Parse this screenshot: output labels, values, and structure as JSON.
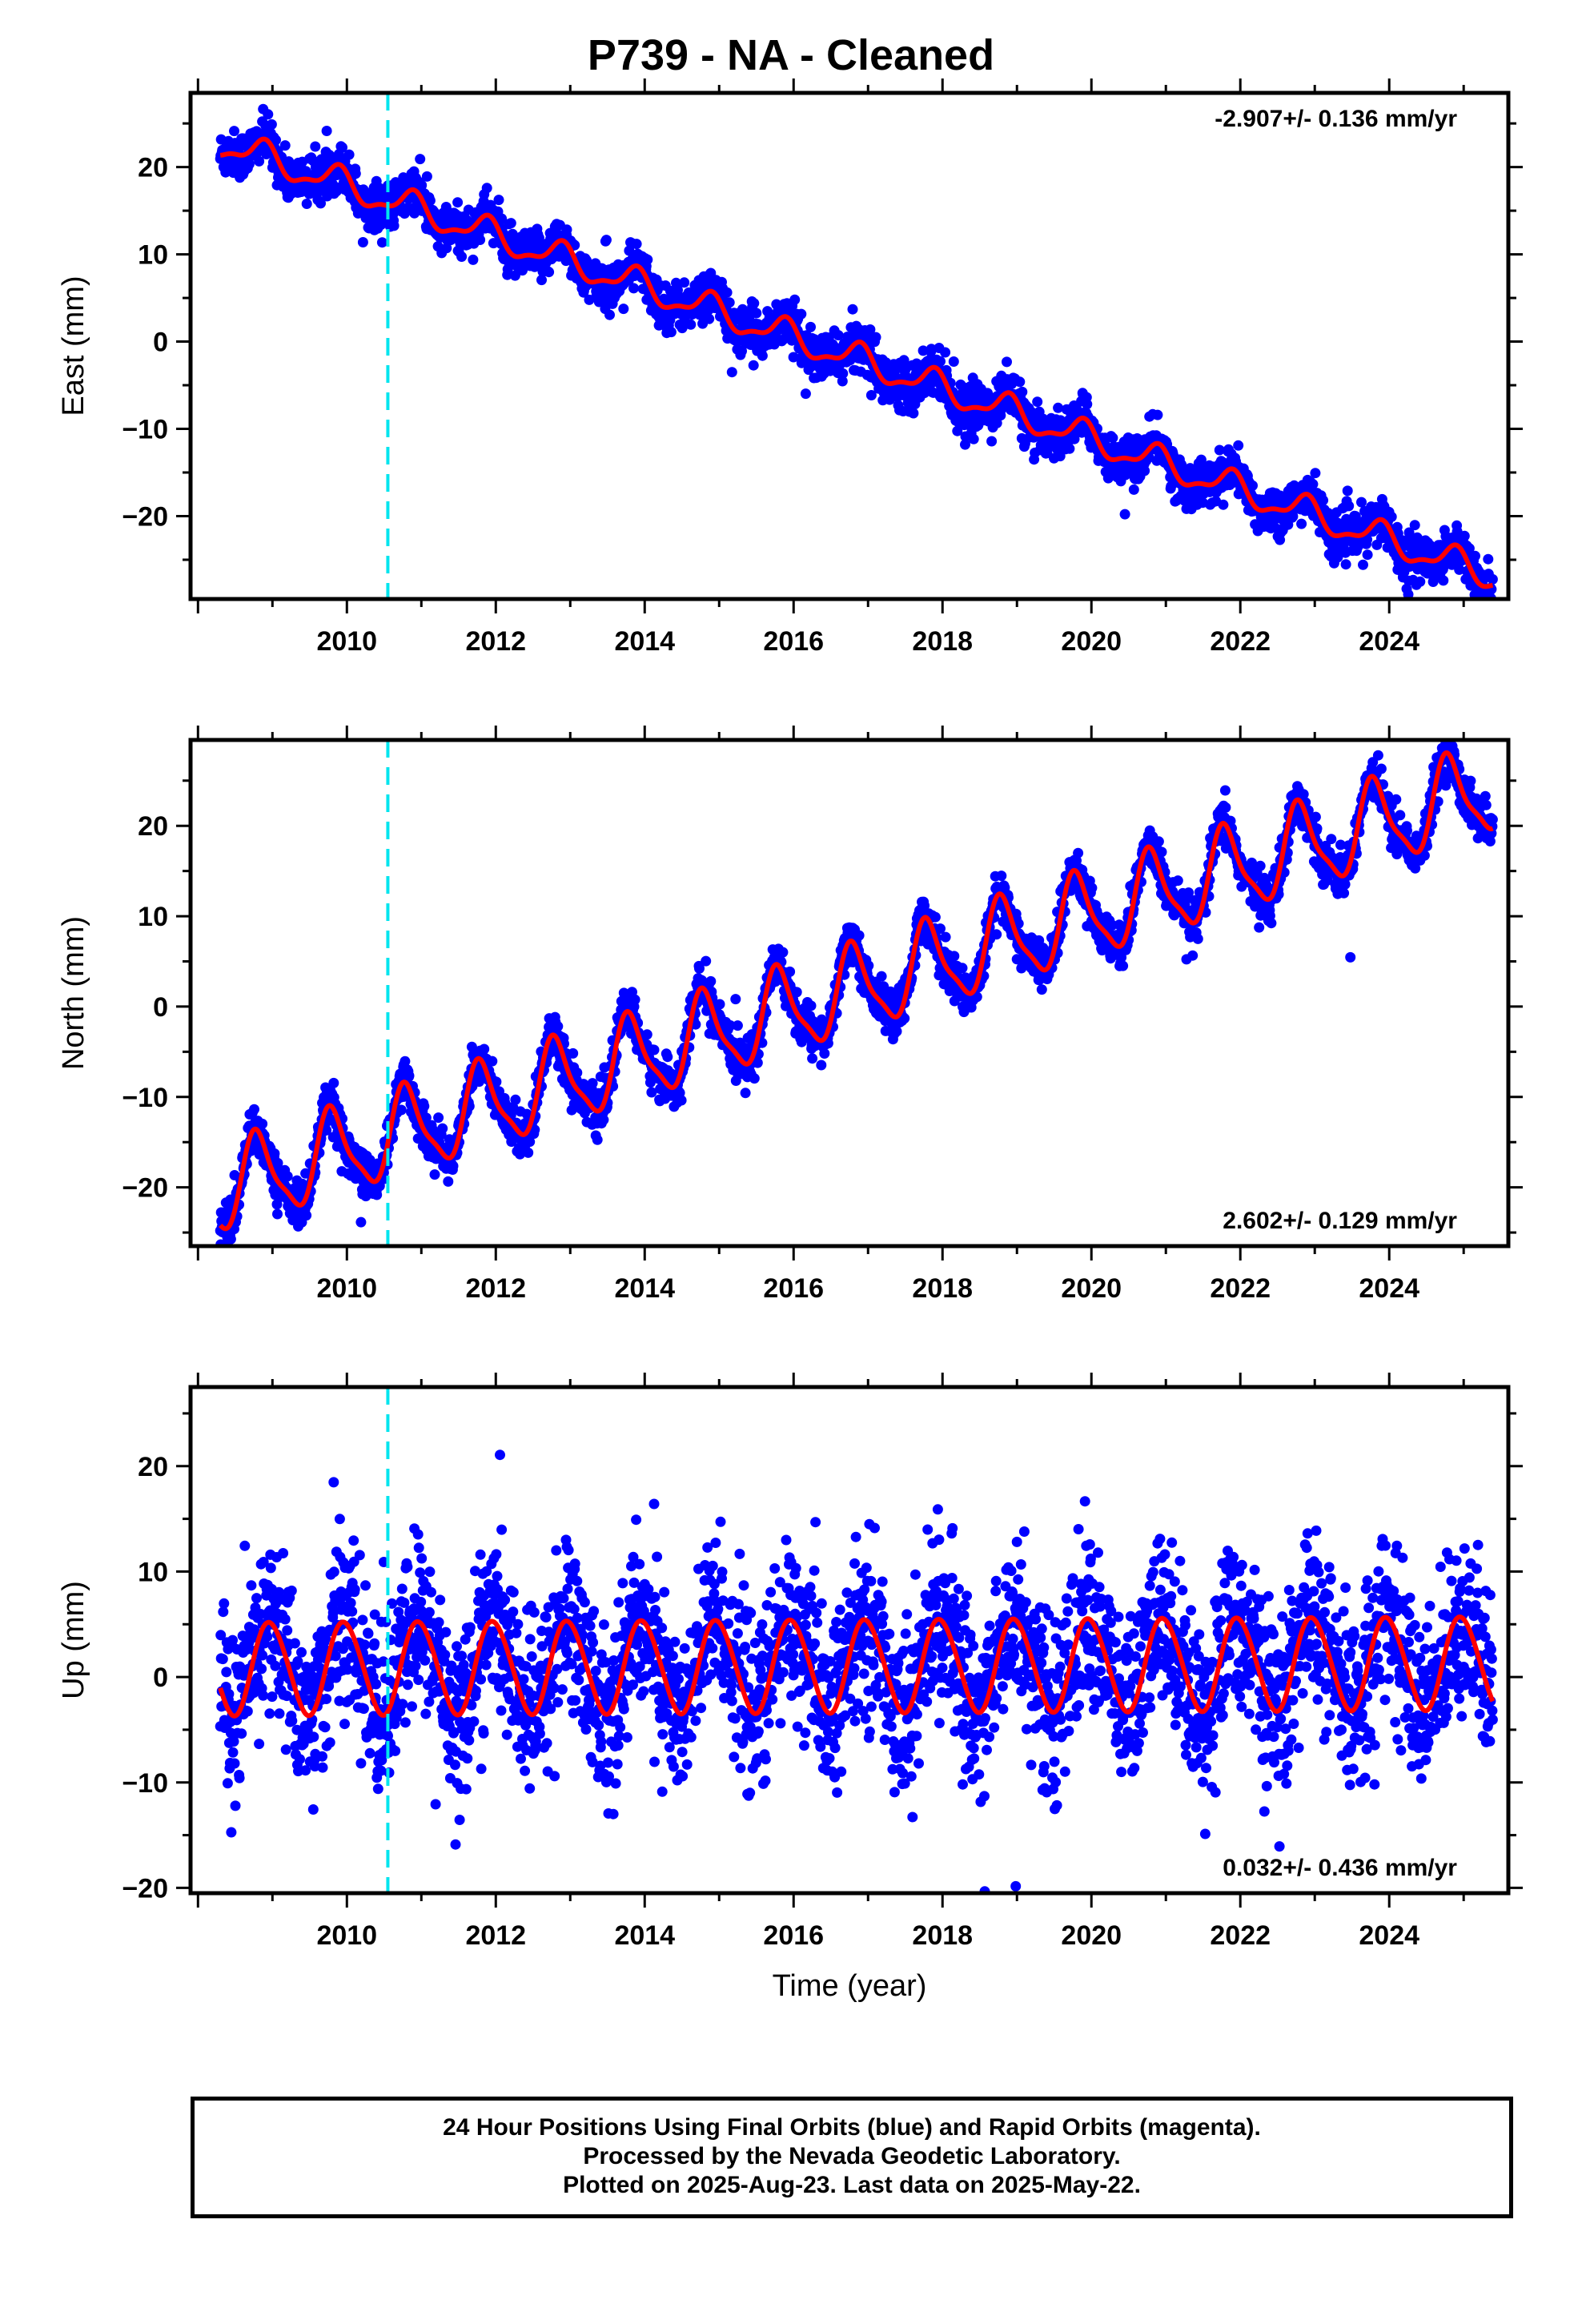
{
  "title": "P739  - NA - Cleaned",
  "chart_data": [
    {
      "type": "scatter",
      "name": "east",
      "ylabel": "East (mm)",
      "xlabel": "",
      "xlim": [
        2007.9,
        2025.6
      ],
      "ylim": [
        -29.5,
        28.5
      ],
      "yticks": [
        20,
        10,
        0,
        -10,
        -20
      ],
      "xticks": [
        2010,
        2012,
        2014,
        2016,
        2018,
        2020,
        2022,
        2024
      ],
      "rate_label": "-2.907+/- 0.136 mm/yr",
      "rate_position": "top-right",
      "equipment_change_year": 2010.55,
      "data_start": 2008.3,
      "data_end": 2025.39,
      "trend": {
        "value_at_2008.3": 22.8,
        "rate_mm_per_yr": -2.907
      },
      "seasonal": {
        "annual_amplitude": 1.6,
        "annual_phase_year_fraction": 0.62,
        "semiannual_amplitude": 0.6,
        "semiannual_phase_year_fraction": 0.3
      },
      "scatter_std": 1.3,
      "colors": {
        "points": "#0000ff",
        "model": "#ff0000",
        "marker": "#00e5ee"
      }
    },
    {
      "type": "scatter",
      "name": "north",
      "ylabel": "North (mm)",
      "xlabel": "",
      "xlim": [
        2007.9,
        2025.6
      ],
      "ylim": [
        -26.5,
        29.5
      ],
      "yticks": [
        20,
        10,
        0,
        -10,
        -20
      ],
      "xticks": [
        2010,
        2012,
        2014,
        2016,
        2018,
        2020,
        2022,
        2024
      ],
      "rate_label": "2.602+/- 0.129 mm/yr",
      "rate_position": "bottom-right",
      "equipment_change_year": 2010.55,
      "data_start": 2008.3,
      "data_end": 2025.39,
      "trend": {
        "value_at_2008.3": -20.3,
        "rate_mm_per_yr": 2.602
      },
      "seasonal": {
        "annual_amplitude": 4.6,
        "annual_phase_year_fraction": 0.55,
        "semiannual_amplitude": 1.2,
        "semiannual_phase_year_fraction": 0.1
      },
      "scatter_std": 1.2,
      "colors": {
        "points": "#0000ff",
        "model": "#ff0000",
        "marker": "#00e5ee"
      }
    },
    {
      "type": "scatter",
      "name": "up",
      "ylabel": "Up (mm)",
      "xlabel": "Time (year)",
      "xlim": [
        2007.9,
        2025.6
      ],
      "ylim": [
        -20.5,
        27.5
      ],
      "yticks": [
        20,
        10,
        0,
        -10,
        -20
      ],
      "xticks": [
        2010,
        2012,
        2014,
        2016,
        2018,
        2020,
        2022,
        2024
      ],
      "rate_label": "0.032+/- 0.436 mm/yr",
      "rate_position": "bottom-right",
      "equipment_change_year": 2010.55,
      "data_start": 2008.3,
      "data_end": 2025.39,
      "trend": {
        "value_at_2008.3": 0.8,
        "rate_mm_per_yr": 0.032
      },
      "seasonal": {
        "annual_amplitude": 4.4,
        "annual_phase_year_fraction": 0.72,
        "semiannual_amplitude": 0.3,
        "semiannual_phase_year_fraction": 0.2
      },
      "scatter_std": 4.0,
      "colors": {
        "points": "#0000ff",
        "model": "#ff0000",
        "marker": "#00e5ee"
      }
    }
  ],
  "footer": {
    "line1": "24 Hour Positions Using Final Orbits (blue) and Rapid Orbits (magenta).",
    "line2": "Processed by the Nevada Geodetic Laboratory.",
    "line3": "Plotted on 2025-Aug-23. Last data on 2025-May-22."
  }
}
